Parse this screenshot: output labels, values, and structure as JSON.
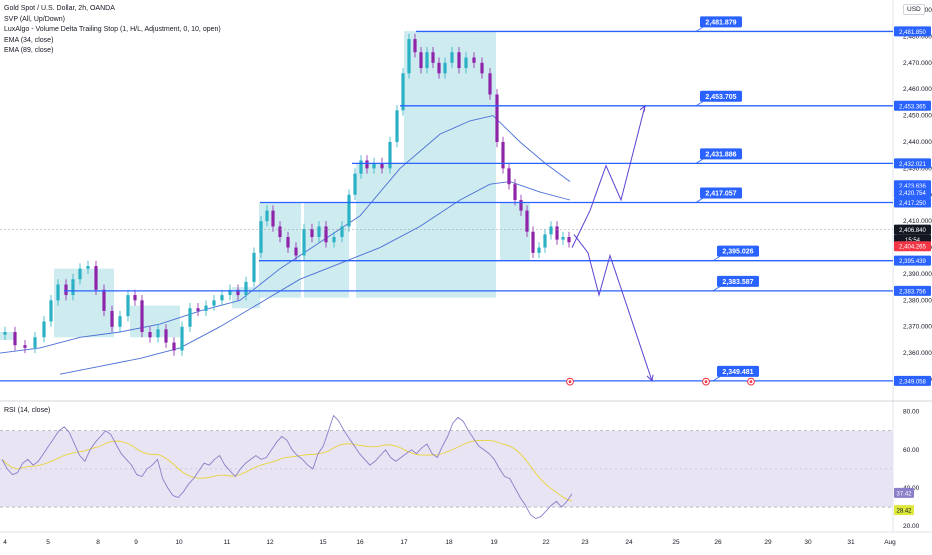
{
  "header": {
    "title": "Gold Spot / U.S. Dollar, 2h, OANDA",
    "indicators": [
      "SVP (All, Up/Down)",
      "LuxAlgo - Volume Delta Trailing Stop (1, H/L, Adjustment, 0, 10, open)",
      "EMA (34, close)",
      "EMA (89, close)"
    ],
    "currency": "USD",
    "rsi_title": "RSI (14, close)"
  },
  "colors": {
    "level_line": "#2962ff",
    "up_candle": "#2ab1c5",
    "down_candle": "#8e24aa",
    "volume_profile": "#a6dbe4",
    "ema": "#4a6fd6",
    "rsi_line": "#8a7fc8",
    "rsi_ma": "#e8d33a",
    "rsi_band": "#e9e4f4",
    "price_now": "#131722",
    "price_red": "#f23645",
    "rsi_low_label": "#dde83a"
  },
  "chart_data": {
    "type": "candlestick",
    "price_axis": {
      "ylim": [
        2343,
        2490
      ],
      "ticks": [
        2490,
        2480,
        2470,
        2460,
        2450,
        2440,
        2430,
        2420,
        2410,
        2400,
        2390,
        2380,
        2370,
        2360,
        2350
      ]
    },
    "x_ticks": [
      "4",
      "5",
      "8",
      "9",
      "10",
      "11",
      "12",
      "15",
      "16",
      "17",
      "18",
      "19",
      "22",
      "23",
      "24",
      "25",
      "26",
      "29",
      "30",
      "31",
      "Aug"
    ],
    "level_annotations": [
      {
        "label": "2,481.879",
        "axis_label": "2,481.850"
      },
      {
        "label": "2,453.705",
        "axis_label": "2,453.365"
      },
      {
        "label": "2,431.886",
        "axis_label": "2,432.021"
      },
      {
        "label": "2,417.057",
        "axis_label": "2,417.250"
      },
      {
        "label": "2,395.026",
        "axis_label": "2,395.439"
      },
      {
        "label": "2,383.587",
        "axis_label": "2,383.756"
      },
      {
        "label": "2,349.481",
        "axis_label": "2,349.058"
      }
    ],
    "price_labels": [
      {
        "text": "2,423.636",
        "price": 2423.6,
        "style": "blue"
      },
      {
        "text": "2,420.754",
        "price": 2420.8,
        "style": "blue"
      },
      {
        "text": "2,406.840",
        "price": 2406.8,
        "style": "current"
      },
      {
        "text": "15:54",
        "price": 2403.0,
        "style": "timer"
      },
      {
        "text": "2,404.265",
        "price": 2400.5,
        "style": "red"
      }
    ],
    "projection_up": [
      [
        2393,
        2410
      ],
      [
        2400,
        2425
      ],
      [
        2410,
        2418
      ],
      [
        2425,
        2430
      ],
      [
        2445,
        2453.7
      ]
    ],
    "projection_down": [
      [
        2414.5,
        2410
      ],
      [
        2417.1,
        2393
      ],
      [
        2417,
        2383.5
      ],
      [
        2348.5,
        2388.5
      ],
      [
        2349,
        2350
      ]
    ],
    "rsi": {
      "ylim": [
        18,
        84
      ],
      "ticks": [
        80,
        60,
        40,
        20
      ],
      "bands": [
        70,
        30
      ],
      "value_label": "37.42",
      "ma_label": "28.42",
      "values": [
        55,
        50,
        47,
        48,
        53,
        55,
        52,
        54,
        58,
        62,
        66,
        70,
        72,
        69,
        63,
        57,
        54,
        60,
        64,
        67,
        70,
        68,
        63,
        58,
        55,
        52,
        47,
        46,
        50,
        52,
        55,
        45,
        40,
        36,
        35,
        38,
        42,
        45,
        49,
        53,
        52,
        55,
        57,
        52,
        49,
        46,
        50,
        53,
        55,
        57,
        55,
        56,
        60,
        64,
        67,
        65,
        60,
        57,
        55,
        52,
        50,
        58,
        62,
        70,
        78,
        75,
        70,
        66,
        62,
        58,
        55,
        52,
        54,
        57,
        60,
        56,
        54,
        56,
        58,
        60,
        58,
        61,
        63,
        58,
        56,
        62,
        67,
        74,
        77,
        75,
        70,
        66,
        62,
        60,
        58,
        55,
        50,
        46,
        45,
        40,
        35,
        31,
        26,
        24,
        25,
        28,
        31,
        33,
        30,
        33,
        37
      ]
    }
  }
}
